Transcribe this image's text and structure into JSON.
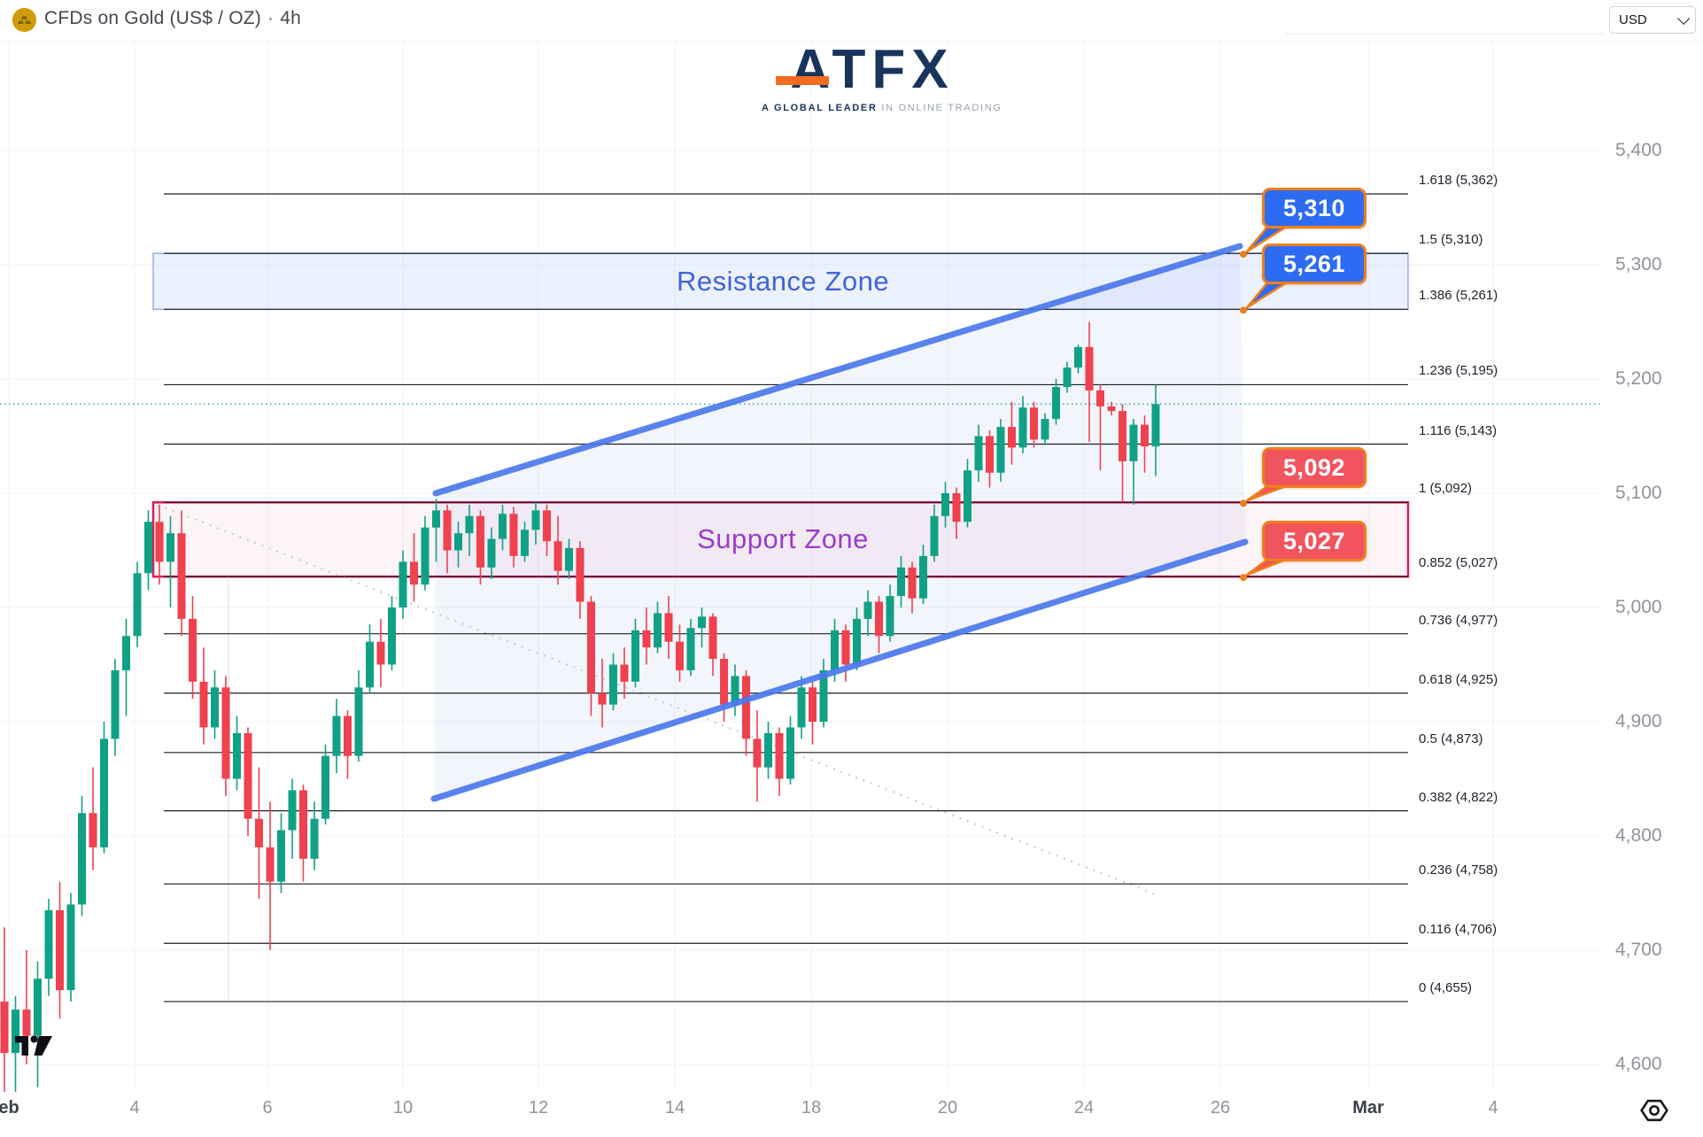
{
  "header": {
    "symbol": "CFDs on Gold (US$ / OZ)",
    "separator": "·",
    "interval": "4h",
    "currency": "USD"
  },
  "brand": {
    "name": "ATFX",
    "tagline_bold": "A GLOBAL LEADER",
    "tagline_light": " IN ONLINE TRADING"
  },
  "icons": {
    "symbol_icon": "gold-bars-icon",
    "currency_chevron": "chevron-down-icon",
    "watermark": "tradingview-logo-icon",
    "scale_settings": "gear-icon"
  },
  "chart_data": {
    "type": "candlestick",
    "title": "CFDs on Gold (US$ / OZ) · 4h",
    "ylim": [
      4560,
      5430
    ],
    "grid": true,
    "price_axis_labels": [
      "5,400",
      "5,300",
      "5,200",
      "5,100",
      "5,000",
      "4,900",
      "4,800",
      "4,700",
      "4,600"
    ],
    "price_axis_values": [
      5400,
      5300,
      5200,
      5100,
      5000,
      4900,
      4800,
      4700,
      4600
    ],
    "time_axis_labels": [
      {
        "text": "eb",
        "bold": true
      },
      {
        "text": "4",
        "bold": false
      },
      {
        "text": "6",
        "bold": false
      },
      {
        "text": "10",
        "bold": false
      },
      {
        "text": "12",
        "bold": false
      },
      {
        "text": "14",
        "bold": false
      },
      {
        "text": "18",
        "bold": false
      },
      {
        "text": "20",
        "bold": false
      },
      {
        "text": "24",
        "bold": false
      },
      {
        "text": "26",
        "bold": false
      },
      {
        "text": "Mar",
        "bold": true
      },
      {
        "text": "4",
        "bold": false
      }
    ],
    "fib_levels": [
      {
        "label": "1.618 (5,362)",
        "ratio": 1.618,
        "price": 5362
      },
      {
        "label": "1.5 (5,310)",
        "ratio": 1.5,
        "price": 5310
      },
      {
        "label": "1.386 (5,261)",
        "ratio": 1.386,
        "price": 5261
      },
      {
        "label": "1.236 (5,195)",
        "ratio": 1.236,
        "price": 5195
      },
      {
        "label": "1.116 (5,143)",
        "ratio": 1.116,
        "price": 5143
      },
      {
        "label": "1 (5,092)",
        "ratio": 1,
        "price": 5092
      },
      {
        "label": "0.852 (5,027)",
        "ratio": 0.852,
        "price": 5027
      },
      {
        "label": "0.736 (4,977)",
        "ratio": 0.736,
        "price": 4977
      },
      {
        "label": "0.618 (4,925)",
        "ratio": 0.618,
        "price": 4925
      },
      {
        "label": "0.5 (4,873)",
        "ratio": 0.5,
        "price": 4873
      },
      {
        "label": "0.382 (4,822)",
        "ratio": 0.382,
        "price": 4822
      },
      {
        "label": "0.236 (4,758)",
        "ratio": 0.236,
        "price": 4758
      },
      {
        "label": "0.116 (4,706)",
        "ratio": 0.116,
        "price": 4706
      },
      {
        "label": "0 (4,655)",
        "ratio": 0,
        "price": 4655
      }
    ],
    "zones": [
      {
        "name": "Resistance Zone",
        "top_price": 5310,
        "bottom_price": 5261,
        "fill": "rgba(41,98,255,0.09)",
        "border": "rgba(73,110,235,0.55)",
        "border_w": 1.5,
        "text_color": "#3e63de"
      },
      {
        "name": "Support Zone",
        "top_price": 5092,
        "bottom_price": 5027,
        "fill": "rgba(224,35,94,0.05)",
        "border": "#dc1a5e",
        "border_w": 2.5,
        "text_color": "#9d3bc8"
      }
    ],
    "price_bubbles": [
      {
        "text": "5,310",
        "price": 5310,
        "fill": "#2d6bf3"
      },
      {
        "text": "5,261",
        "price": 5261,
        "fill": "#2d6bf3"
      },
      {
        "text": "5,092",
        "price": 5092,
        "fill": "#f2545e"
      },
      {
        "text": "5,027",
        "price": 5027,
        "fill": "#f2545e"
      }
    ],
    "bubble_border": "#ee7f1d",
    "channel": {
      "color": "#4b79ec",
      "fill": "rgba(90,120,220,0.07)"
    },
    "current_price": 5178,
    "colors": {
      "up": "#10a184",
      "down": "#ef414e",
      "fib_line": "#1a1e29",
      "grid": "#f1f3f8",
      "axis_text": "#8f939c",
      "axis_text_bold": "#3c404a",
      "current_price_line": "#2aa7b8",
      "trendline_dashed": "#bcc1cb"
    },
    "candles": [
      [
        4655,
        4720,
        4575,
        4610
      ],
      [
        4610,
        4660,
        4560,
        4648
      ],
      [
        4648,
        4700,
        4600,
        4625
      ],
      [
        4625,
        4690,
        4580,
        4675
      ],
      [
        4675,
        4745,
        4660,
        4735
      ],
      [
        4735,
        4760,
        4640,
        4665
      ],
      [
        4665,
        4750,
        4655,
        4740
      ],
      [
        4740,
        4835,
        4730,
        4820
      ],
      [
        4820,
        4860,
        4770,
        4790
      ],
      [
        4790,
        4900,
        4785,
        4885
      ],
      [
        4885,
        4955,
        4870,
        4945
      ],
      [
        4945,
        4990,
        4905,
        4975
      ],
      [
        4975,
        5040,
        4965,
        5030
      ],
      [
        5030,
        5085,
        5015,
        5075
      ],
      [
        5075,
        5090,
        5020,
        5040
      ],
      [
        5040,
        5080,
        5000,
        5065
      ],
      [
        5065,
        5085,
        4975,
        4990
      ],
      [
        4990,
        5010,
        4920,
        4935
      ],
      [
        4935,
        4965,
        4880,
        4895
      ],
      [
        4895,
        4945,
        4885,
        4930
      ],
      [
        4930,
        4940,
        4835,
        4850
      ],
      [
        4850,
        4905,
        4840,
        4890
      ],
      [
        4890,
        4895,
        4800,
        4815
      ],
      [
        4815,
        4860,
        4745,
        4790
      ],
      [
        4790,
        4830,
        4700,
        4760
      ],
      [
        4760,
        4820,
        4750,
        4805
      ],
      [
        4805,
        4850,
        4780,
        4840
      ],
      [
        4840,
        4845,
        4760,
        4780
      ],
      [
        4780,
        4830,
        4770,
        4815
      ],
      [
        4815,
        4880,
        4810,
        4870
      ],
      [
        4870,
        4920,
        4855,
        4905
      ],
      [
        4905,
        4910,
        4850,
        4870
      ],
      [
        4870,
        4945,
        4865,
        4930
      ],
      [
        4930,
        4985,
        4925,
        4970
      ],
      [
        4970,
        4990,
        4930,
        4950
      ],
      [
        4950,
        5010,
        4945,
        5000
      ],
      [
        5000,
        5050,
        4990,
        5040
      ],
      [
        5040,
        5065,
        5005,
        5020
      ],
      [
        5020,
        5080,
        5015,
        5070
      ],
      [
        5070,
        5095,
        5040,
        5085
      ],
      [
        5085,
        5090,
        5030,
        5050
      ],
      [
        5050,
        5075,
        5035,
        5065
      ],
      [
        5065,
        5090,
        5045,
        5080
      ],
      [
        5080,
        5085,
        5020,
        5035
      ],
      [
        5035,
        5070,
        5025,
        5060
      ],
      [
        5060,
        5090,
        5050,
        5082
      ],
      [
        5082,
        5088,
        5035,
        5045
      ],
      [
        5045,
        5075,
        5040,
        5068
      ],
      [
        5068,
        5092,
        5055,
        5085
      ],
      [
        5085,
        5090,
        5045,
        5058
      ],
      [
        5058,
        5080,
        5020,
        5032
      ],
      [
        5032,
        5060,
        5025,
        5052
      ],
      [
        5052,
        5058,
        4990,
        5005
      ],
      [
        5005,
        5010,
        4905,
        4925
      ],
      [
        4925,
        4955,
        4895,
        4915
      ],
      [
        4915,
        4960,
        4910,
        4950
      ],
      [
        4950,
        4965,
        4920,
        4935
      ],
      [
        4935,
        4990,
        4930,
        4980
      ],
      [
        4980,
        5000,
        4950,
        4965
      ],
      [
        4965,
        5005,
        4960,
        4995
      ],
      [
        4995,
        5010,
        4955,
        4970
      ],
      [
        4970,
        4985,
        4935,
        4945
      ],
      [
        4945,
        4990,
        4940,
        4982
      ],
      [
        4982,
        5000,
        4965,
        4992
      ],
      [
        4992,
        4995,
        4940,
        4955
      ],
      [
        4955,
        4960,
        4900,
        4915
      ],
      [
        4915,
        4950,
        4905,
        4940
      ],
      [
        4940,
        4945,
        4870,
        4885
      ],
      [
        4885,
        4910,
        4830,
        4860
      ],
      [
        4860,
        4900,
        4850,
        4890
      ],
      [
        4890,
        4895,
        4835,
        4850
      ],
      [
        4850,
        4905,
        4845,
        4895
      ],
      [
        4895,
        4940,
        4885,
        4930
      ],
      [
        4930,
        4935,
        4880,
        4900
      ],
      [
        4900,
        4955,
        4895,
        4945
      ],
      [
        4945,
        4990,
        4935,
        4980
      ],
      [
        4980,
        4985,
        4935,
        4950
      ],
      [
        4950,
        5000,
        4945,
        4990
      ],
      [
        4990,
        5015,
        4975,
        5005
      ],
      [
        5005,
        5010,
        4960,
        4975
      ],
      [
        4975,
        5020,
        4970,
        5010
      ],
      [
        5010,
        5045,
        5000,
        5035
      ],
      [
        5035,
        5040,
        4995,
        5008
      ],
      [
        5008,
        5055,
        5003,
        5045
      ],
      [
        5045,
        5090,
        5040,
        5080
      ],
      [
        5080,
        5110,
        5070,
        5100
      ],
      [
        5100,
        5105,
        5060,
        5075
      ],
      [
        5075,
        5130,
        5070,
        5120
      ],
      [
        5120,
        5160,
        5110,
        5150
      ],
      [
        5150,
        5155,
        5105,
        5118
      ],
      [
        5118,
        5165,
        5110,
        5158
      ],
      [
        5158,
        5180,
        5125,
        5140
      ],
      [
        5140,
        5185,
        5135,
        5175
      ],
      [
        5175,
        5180,
        5140,
        5147
      ],
      [
        5147,
        5170,
        5142,
        5165
      ],
      [
        5165,
        5200,
        5160,
        5193
      ],
      [
        5193,
        5215,
        5188,
        5210
      ],
      [
        5210,
        5230,
        5205,
        5228
      ],
      [
        5228,
        5250,
        5145,
        5190
      ],
      [
        5190,
        5195,
        5120,
        5176
      ],
      [
        5176,
        5180,
        5168,
        5172
      ],
      [
        5172,
        5178,
        5092,
        5128
      ],
      [
        5128,
        5165,
        5090,
        5160
      ],
      [
        5160,
        5168,
        5118,
        5141
      ],
      [
        5141,
        5195,
        5115,
        5178
      ]
    ]
  }
}
